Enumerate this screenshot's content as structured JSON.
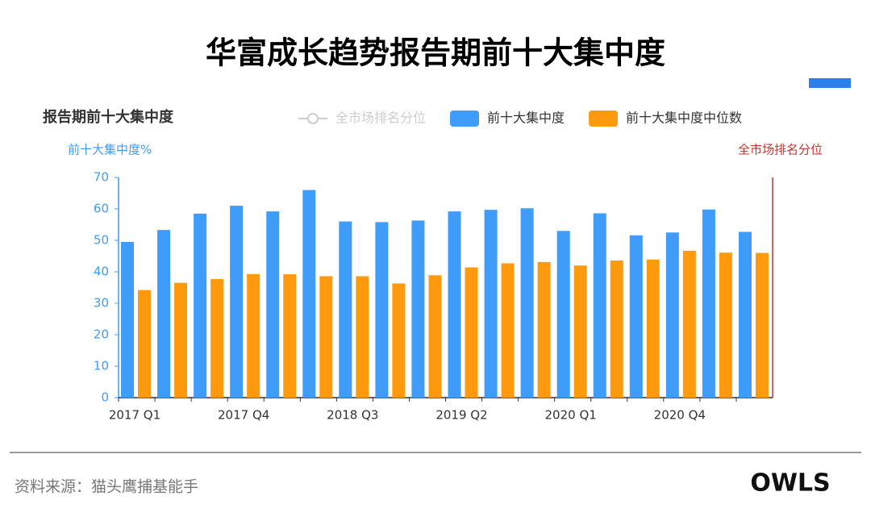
{
  "page_title": "华富成长趋势报告期前十大集中度",
  "chart_data": {
    "type": "bar",
    "title": "报告期前十大集中度",
    "y_label": "前十大集中度%",
    "y2_label": "全市场排名分位",
    "categories": [
      "2017 Q1",
      null,
      null,
      "2017 Q4",
      null,
      null,
      "2018 Q3",
      null,
      null,
      "2019 Q2",
      null,
      null,
      "2020 Q1",
      null,
      null,
      "2020 Q4",
      null,
      null
    ],
    "series": [
      {
        "name": "全市场排名分位",
        "color": "#cccccc",
        "axis": "y2",
        "hidden": true,
        "values": [
          null,
          null,
          null,
          null,
          null,
          null,
          null,
          null,
          null,
          null,
          null,
          null,
          null,
          null,
          null,
          null,
          null,
          null
        ]
      },
      {
        "name": "前十大集中度",
        "color": "#3f9cf8",
        "values": [
          49.5,
          53.3,
          58.5,
          61,
          59.2,
          66,
          56,
          55.8,
          56.3,
          59.2,
          59.7,
          60.2,
          53,
          58.6,
          51.6,
          52.5,
          59.8,
          52.7
        ]
      },
      {
        "name": "前十大集中度中位数",
        "color": "#ff9a0e",
        "values": [
          34.2,
          36.5,
          37.7,
          39.3,
          39.2,
          38.6,
          38.6,
          36.3,
          38.9,
          41.4,
          42.7,
          43.1,
          42,
          43.6,
          43.9,
          46.7,
          46.1,
          46
        ]
      }
    ],
    "ylim": [
      0,
      70
    ],
    "yticks": [
      0,
      10,
      20,
      30,
      40,
      50,
      60,
      70
    ],
    "grid": false
  },
  "source": "资料来源：猫头鹰捕基能手",
  "logo": "OWLS"
}
